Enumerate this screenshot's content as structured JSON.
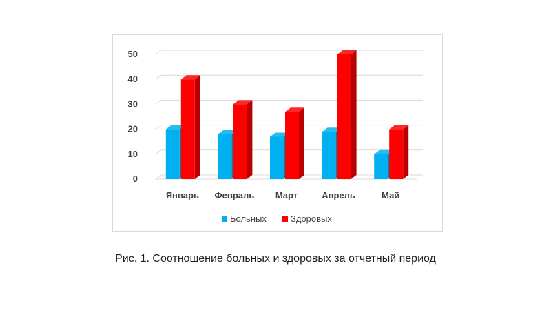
{
  "caption": "Рис. 1. Соотношение больных и здоровых за отчетный период",
  "chart_data": {
    "type": "bar",
    "style": "3d-clustered-column",
    "categories": [
      "Январь",
      "Февраль",
      "Март",
      "Апрель",
      "Май"
    ],
    "series": [
      {
        "name": "Больных",
        "color": "#00b0f0",
        "values": [
          20,
          18,
          17,
          19,
          10
        ]
      },
      {
        "name": "Здоровых",
        "color": "#ff0000",
        "values": [
          40,
          30,
          27,
          50,
          20
        ]
      }
    ],
    "yticks": [
      "0",
      "10",
      "20",
      "30",
      "40",
      "50"
    ],
    "ylim": [
      0,
      50
    ],
    "grid": true,
    "legend_position": "bottom"
  }
}
